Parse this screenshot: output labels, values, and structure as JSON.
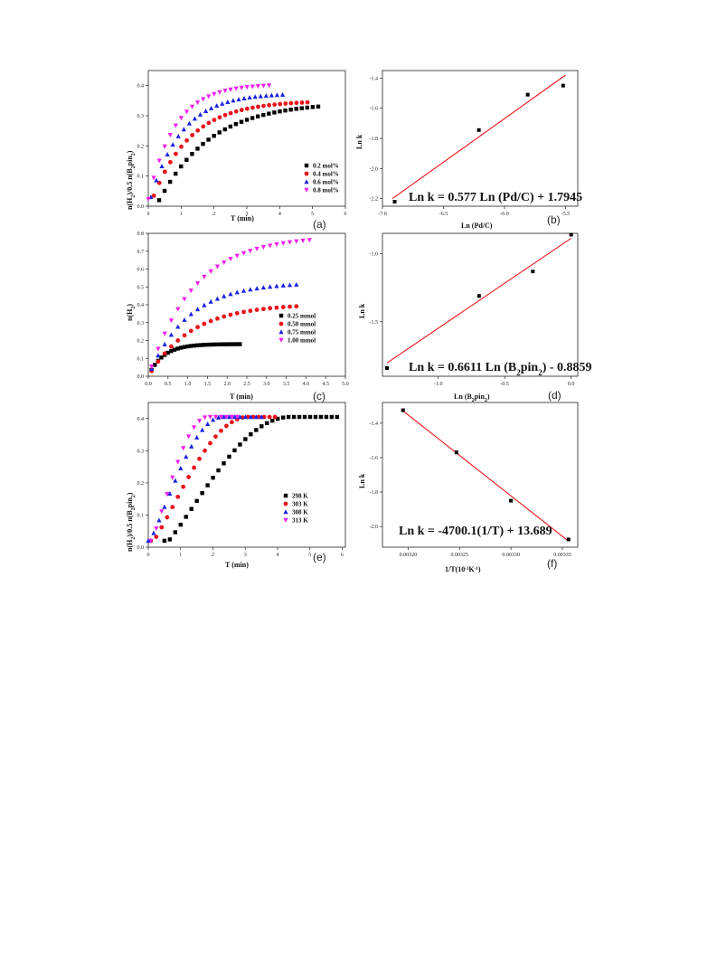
{
  "colors": {
    "black": "#000000",
    "red": "#e8141c",
    "blue": "#1a22e0",
    "magenta": "#ee1cee",
    "fit_line": "#e8141c",
    "axis": "#222222"
  },
  "chart_data": [
    {
      "id": "a",
      "panel_label": "(a)",
      "type": "scatter",
      "xlabel": "T (min)",
      "ylabel_main": "n(H",
      "ylabel_s1": "2",
      "ylabel_mid": ")/0.5 n(B",
      "ylabel_s2": "2",
      "ylabel_end": "pin",
      "ylabel_s3": "2",
      "ylabel_close": ")",
      "xlim": [
        0,
        6
      ],
      "ylim": [
        0,
        0.45
      ],
      "xticks": [
        "0",
        "1",
        "2",
        "3",
        "4",
        "5",
        "6"
      ],
      "xtick_values": [
        0,
        1,
        2,
        3,
        4,
        5,
        6
      ],
      "yticks": [
        "0.0",
        "0.1",
        "0.2",
        "0.3",
        "0.4"
      ],
      "ytick_values": [
        0,
        0.1,
        0.2,
        0.3,
        0.4
      ],
      "legend_position": "middle-right",
      "series": [
        {
          "name": "0.2 mol%",
          "marker": "square",
          "color": "#000000",
          "x0": 0.33,
          "dx": 0.167,
          "count": 30,
          "ymax": 0.345,
          "tau": 1.55,
          "t0": 0.25
        },
        {
          "name": "0.4 mol%",
          "marker": "circle",
          "color": "#e8141c",
          "x0": 0.17,
          "dx": 0.167,
          "count": 29,
          "ymax": 0.35,
          "tau": 1.15,
          "t0": 0.05
        },
        {
          "name": "0.6 mol%",
          "marker": "triangle-up",
          "color": "#1a22e0",
          "x0": 0.08,
          "dx": 0.167,
          "count": 25,
          "ymax": 0.375,
          "tau": 0.95,
          "t0": 0.0
        },
        {
          "name": "0.8 mol%",
          "marker": "triangle-down",
          "color": "#ee1cee",
          "x0": 0.0,
          "dx": 0.167,
          "count": 23,
          "ymax": 0.405,
          "tau": 0.82,
          "t0": -0.05
        }
      ]
    },
    {
      "id": "b",
      "panel_label": "(b)",
      "type": "scatter",
      "xlabel": "Ln (Pd/C)",
      "ylabel": "Ln k",
      "xlim": [
        -7.0,
        -5.4
      ],
      "ylim": [
        -2.25,
        -1.35
      ],
      "xticks": [
        "-7.0",
        "-6.5",
        "-6.0",
        "-5.5"
      ],
      "xtick_values": [
        -7.0,
        -6.5,
        -6.0,
        -5.5
      ],
      "yticks": [
        "-2.2",
        "-2.0",
        "-1.8",
        "-1.6",
        "-1.4"
      ],
      "ytick_values": [
        -2.2,
        -2.0,
        -1.8,
        -1.6,
        -1.4
      ],
      "points": [
        {
          "x": -6.9,
          "y": -2.22
        },
        {
          "x": -6.21,
          "y": -1.745
        },
        {
          "x": -5.81,
          "y": -1.51
        },
        {
          "x": -5.52,
          "y": -1.45
        }
      ],
      "fit": {
        "x": [
          -6.92,
          -5.5
        ],
        "y": [
          -2.2,
          -1.38
        ]
      },
      "equation": "Ln k = 0.577 Ln (Pd/C) + 1.7945"
    },
    {
      "id": "c",
      "panel_label": "(c)",
      "type": "scatter",
      "xlabel": "T (min)",
      "ylabel_main": "n(H",
      "ylabel_s1": "2",
      "ylabel_close": ")",
      "xlim": [
        0,
        5
      ],
      "ylim": [
        0,
        0.8
      ],
      "xticks": [
        "0.0",
        "0.5",
        "1.0",
        "1.5",
        "2.0",
        "2.5",
        "3.0",
        "3.5",
        "4.0",
        "4.5",
        "5.0"
      ],
      "xtick_values": [
        0,
        0.5,
        1,
        1.5,
        2,
        2.5,
        3,
        3.5,
        4,
        4.5,
        5
      ],
      "yticks": [
        "0.0",
        "0.1",
        "0.2",
        "0.3",
        "0.4",
        "0.5",
        "0.6",
        "0.7",
        "0.8"
      ],
      "ytick_values": [
        0,
        0.1,
        0.2,
        0.3,
        0.4,
        0.5,
        0.6,
        0.7,
        0.8
      ],
      "legend_position": "middle-right",
      "series": [
        {
          "name": "0.25 mmol",
          "marker": "square",
          "color": "#000000",
          "x0": 0.083,
          "dx": 0.083,
          "count": 28,
          "ymax": 0.18,
          "tau": 0.38,
          "t0": 0.0
        },
        {
          "name": "0.50 mmol",
          "marker": "circle",
          "color": "#e8141c",
          "x0": 0.083,
          "dx": 0.167,
          "count": 23,
          "ymax": 0.405,
          "tau": 1.1,
          "t0": 0.0
        },
        {
          "name": "0.75 mmol",
          "marker": "triangle-up",
          "color": "#1a22e0",
          "x0": 0.083,
          "dx": 0.167,
          "count": 23,
          "ymax": 0.525,
          "tau": 1.0,
          "t0": 0.0
        },
        {
          "name": "1.00 mmol",
          "marker": "triangle-down",
          "color": "#ee1cee",
          "x0": 0.083,
          "dx": 0.167,
          "count": 25,
          "ymax": 0.785,
          "tau": 1.15,
          "t0": 0.0
        }
      ]
    },
    {
      "id": "d",
      "panel_label": "(d)",
      "type": "scatter",
      "xlabel_main": "Ln (B",
      "xlabel_s1": "2",
      "xlabel_mid": "pin",
      "xlabel_s2": "2",
      "xlabel_close": ")",
      "ylabel": "Ln k",
      "xlim": [
        -1.42,
        0.05
      ],
      "ylim": [
        -1.9,
        -0.85
      ],
      "xticks": [
        "-1.0",
        "-0.5",
        "0.0"
      ],
      "xtick_values": [
        -1.0,
        -0.5,
        0.0
      ],
      "yticks": [
        "-1.5",
        "-1.0"
      ],
      "ytick_values": [
        -1.5,
        -1.0
      ],
      "points": [
        {
          "x": -1.386,
          "y": -1.84
        },
        {
          "x": -0.693,
          "y": -1.31
        },
        {
          "x": -0.288,
          "y": -1.13
        },
        {
          "x": 0.0,
          "y": -0.86
        }
      ],
      "fit": {
        "x": [
          -1.386,
          0.0
        ],
        "y": [
          -1.8024,
          -0.8859
        ]
      },
      "eq_main": "Ln k = 0.6611 Ln (B",
      "eq_s1": "2",
      "eq_mid": "pin",
      "eq_s2": "2",
      "eq_close": ") - 0.8859"
    },
    {
      "id": "e",
      "panel_label": "(e)",
      "type": "scatter",
      "xlabel": "T (min)",
      "ylabel_main": "n(H",
      "ylabel_s1": "2",
      "ylabel_mid": ")/0.5 n(B",
      "ylabel_s2": "2",
      "ylabel_end": "pin",
      "ylabel_s3": "2",
      "ylabel_close": ")",
      "xlim": [
        0,
        6.1
      ],
      "ylim": [
        0,
        0.45
      ],
      "xticks": [
        "0",
        "1",
        "2",
        "3",
        "4",
        "5",
        "6"
      ],
      "xtick_values": [
        0,
        1,
        2,
        3,
        4,
        5,
        6
      ],
      "yticks": [
        "0.0",
        "0.1",
        "0.2",
        "0.3",
        "0.4"
      ],
      "ytick_values": [
        0,
        0.1,
        0.2,
        0.3,
        0.4
      ],
      "legend_position": "middle-right",
      "series": [
        {
          "name": "298 K",
          "marker": "square",
          "color": "#000000",
          "x0": 0.5,
          "dx": 0.167,
          "count": 33,
          "xsat": 4.4,
          "ymax": 0.405
        },
        {
          "name": "303 K",
          "marker": "circle",
          "color": "#e8141c",
          "x0": 0.08,
          "dx": 0.167,
          "count": 24,
          "xsat": 3.1,
          "ymax": 0.405
        },
        {
          "name": "308 K",
          "marker": "triangle-up",
          "color": "#1a22e0",
          "x0": 0.0,
          "dx": 0.167,
          "count": 22,
          "xsat": 2.3,
          "ymax": 0.405
        },
        {
          "name": "313 K",
          "marker": "triangle-down",
          "color": "#ee1cee",
          "x0": 0.08,
          "dx": 0.167,
          "count": 17,
          "xsat": 1.85,
          "ymax": 0.405
        }
      ]
    },
    {
      "id": "f",
      "panel_label": "(f)",
      "type": "scatter",
      "xlabel_main": "1/T(10",
      "xlabel_s1": "-3",
      "xlabel_mid": "K",
      "xlabel_s2": "-1",
      "xlabel_close": ")",
      "ylabel": "Ln k",
      "xlim": [
        0.003175,
        0.003365
      ],
      "ylim": [
        -2.12,
        -1.28
      ],
      "xticks": [
        "0.00320",
        "0.00325",
        "0.00330",
        "0.00335"
      ],
      "xtick_values": [
        0.0032,
        0.00325,
        0.0033,
        0.00335
      ],
      "yticks": [
        "-2.0",
        "-1.8",
        "-1.6",
        "-1.4"
      ],
      "ytick_values": [
        -2.0,
        -1.8,
        -1.6,
        -1.4
      ],
      "points": [
        {
          "x": 0.003195,
          "y": -1.325
        },
        {
          "x": 0.003247,
          "y": -1.57
        },
        {
          "x": 0.0033,
          "y": -1.85
        },
        {
          "x": 0.003356,
          "y": -2.075
        }
      ],
      "fit": {
        "x": [
          0.003195,
          0.003356
        ],
        "y": [
          -1.329,
          -2.085
        ]
      },
      "equation": "Ln k = -4700.1(1/T) + 13.689"
    }
  ]
}
